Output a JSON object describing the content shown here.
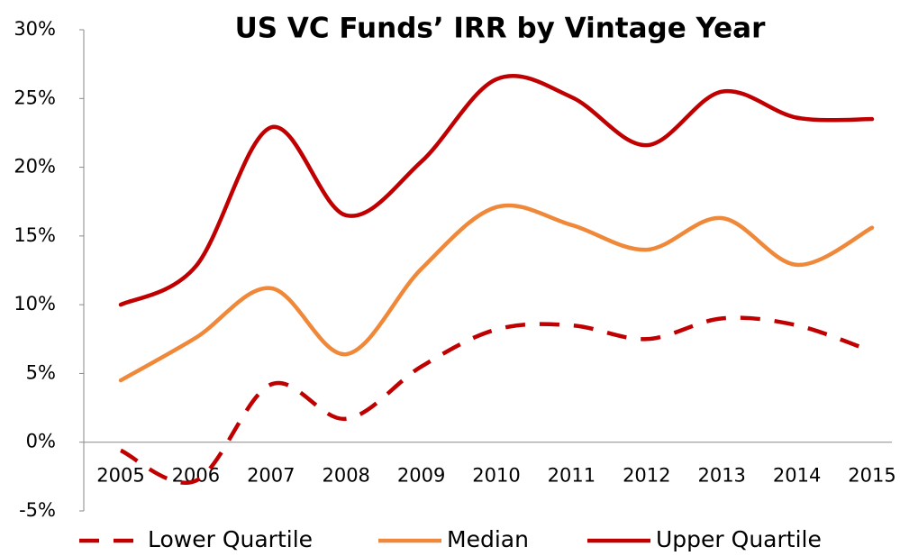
{
  "chart_data": {
    "type": "line",
    "title": "US VC Funds’ IRR by Vintage Year",
    "categories": [
      "2005",
      "2006",
      "2007",
      "2008",
      "2009",
      "2010",
      "2011",
      "2012",
      "2013",
      "2014",
      "2015"
    ],
    "series": [
      {
        "name": "Lower Quartile",
        "color": "#c00000",
        "dashed": true,
        "values": [
          -0.6,
          -2.8,
          4.2,
          1.7,
          5.5,
          8.2,
          8.5,
          7.5,
          9.0,
          8.5,
          6.6
        ]
      },
      {
        "name": "Median",
        "color": "#f0883a",
        "values": [
          4.5,
          7.6,
          11.2,
          6.4,
          12.6,
          17.1,
          15.8,
          14.0,
          16.3,
          12.9,
          15.6
        ]
      },
      {
        "name": "Upper Quartile",
        "color": "#c00000",
        "values": [
          10.0,
          12.8,
          22.9,
          16.5,
          20.4,
          26.4,
          25.1,
          21.6,
          25.5,
          23.6,
          23.5
        ]
      }
    ],
    "ylim": [
      -5,
      30
    ],
    "yticks": [
      {
        "value": -5,
        "label": "-5%"
      },
      {
        "value": 0,
        "label": "0%"
      },
      {
        "value": 5,
        "label": "5%"
      },
      {
        "value": 10,
        "label": "10%"
      },
      {
        "value": 15,
        "label": "15%"
      },
      {
        "value": 20,
        "label": "20%"
      },
      {
        "value": 25,
        "label": "25%"
      },
      {
        "value": 30,
        "label": "30%"
      }
    ],
    "legend": "bottom"
  }
}
